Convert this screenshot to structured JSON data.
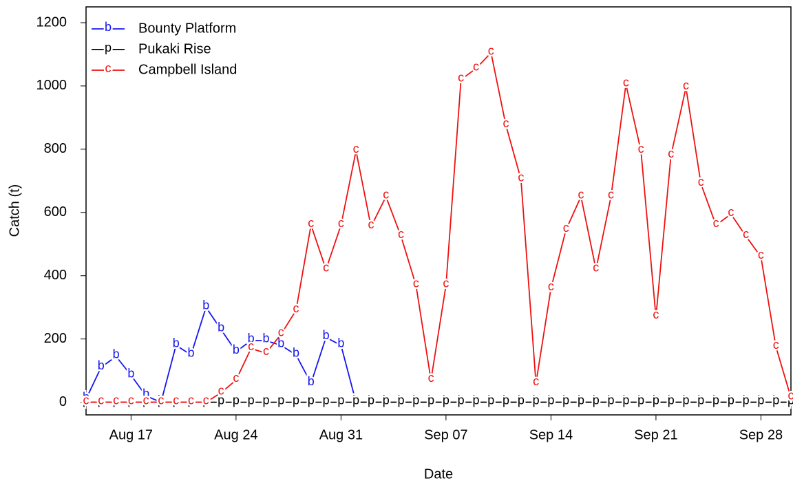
{
  "chart_data": {
    "type": "line",
    "x_label": "Date",
    "y_label": "Catch (t)",
    "categories": [
      null,
      null,
      null,
      "Aug 17",
      null,
      null,
      null,
      null,
      null,
      null,
      "Aug 24",
      null,
      null,
      null,
      null,
      null,
      null,
      "Aug 31",
      null,
      null,
      null,
      null,
      null,
      null,
      "Sep 07",
      null,
      null,
      null,
      null,
      null,
      null,
      "Sep 14",
      null,
      null,
      null,
      null,
      null,
      null,
      "Sep 21",
      null,
      null,
      null,
      null,
      null,
      null,
      "Sep 28",
      null,
      null
    ],
    "series": [
      {
        "name": "Bounty Platform",
        "marker": "b",
        "color": "#1515ee",
        "values": [
          10,
          110,
          145,
          85,
          20,
          0,
          180,
          150,
          300,
          230,
          160,
          195,
          195,
          180,
          150,
          60,
          205,
          180,
          0,
          0,
          0,
          0,
          0,
          0,
          0,
          0,
          0,
          0,
          0,
          0,
          0,
          0,
          0,
          0,
          0,
          0,
          0,
          0,
          0,
          0,
          0,
          0,
          0,
          0,
          0,
          0,
          0,
          0
        ]
      },
      {
        "name": "Pukaki Rise",
        "marker": "p",
        "color": "#000000",
        "values": [
          0,
          0,
          0,
          0,
          0,
          0,
          0,
          0,
          0,
          0,
          0,
          0,
          0,
          0,
          0,
          0,
          0,
          0,
          0,
          0,
          0,
          0,
          0,
          0,
          0,
          0,
          0,
          0,
          0,
          0,
          0,
          0,
          0,
          0,
          0,
          0,
          0,
          0,
          0,
          0,
          0,
          0,
          0,
          0,
          0,
          0,
          0,
          0
        ]
      },
      {
        "name": "Campbell Island",
        "marker": "c",
        "color": "#ee1111",
        "values": [
          0,
          0,
          0,
          0,
          0,
          0,
          0,
          0,
          0,
          30,
          70,
          170,
          155,
          215,
          290,
          560,
          420,
          560,
          795,
          555,
          650,
          525,
          370,
          70,
          370,
          1020,
          1055,
          1105,
          875,
          705,
          60,
          360,
          545,
          650,
          420,
          650,
          1005,
          795,
          270,
          780,
          995,
          690,
          560,
          595,
          525,
          460,
          175,
          15
        ]
      }
    ],
    "ylim": [
      -40,
      1250
    ],
    "yticks": [
      0,
      200,
      400,
      600,
      800,
      1000,
      1200
    ],
    "legend": "top-left"
  }
}
